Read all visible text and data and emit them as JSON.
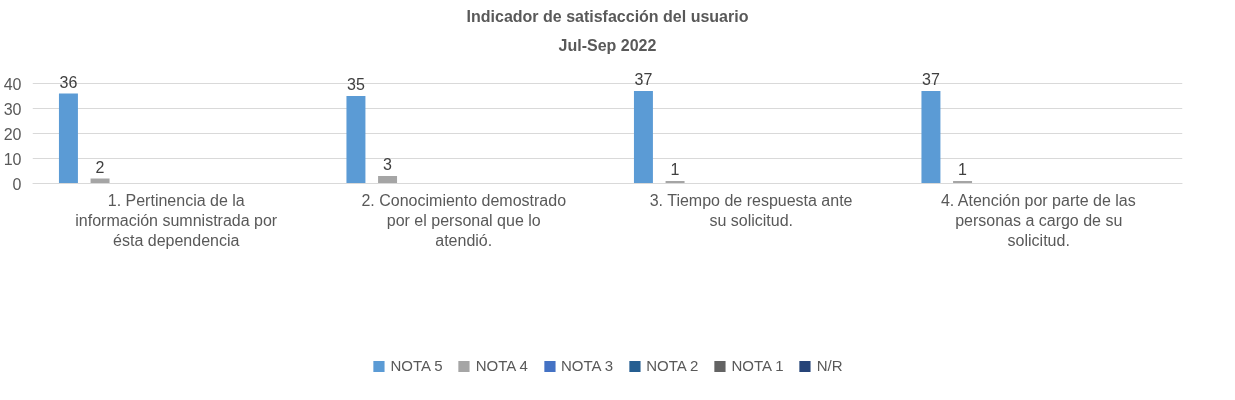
{
  "chart_data": {
    "type": "bar",
    "title": "Indicador de satisfacción del usuario",
    "subtitle": "Jul-Sep 2022",
    "categories": [
      "1. Pertinencia de la información sumnistrada por ésta dependencia",
      "2. Conocimiento demostrado por el personal que lo atendió.",
      "3. Tiempo de respuesta ante su solicitud.",
      "4. Atención por parte de las personas a cargo de su solicitud."
    ],
    "series": [
      {
        "name": "NOTA 5",
        "color": "#5b9bd5",
        "values": [
          36,
          35,
          37,
          37
        ],
        "value_labels": [
          "36",
          "35",
          "37",
          "37"
        ]
      },
      {
        "name": "NOTA 4",
        "color": "#a5a5a5",
        "values": [
          2,
          3,
          1,
          1
        ],
        "value_labels": [
          "2",
          "3",
          "1",
          "1"
        ]
      },
      {
        "name": "NOTA 3",
        "color": "#4472c4",
        "values": [
          0,
          0,
          0,
          0
        ]
      },
      {
        "name": "NOTA 2",
        "color": "#255e91",
        "values": [
          0,
          0,
          0,
          0
        ]
      },
      {
        "name": "NOTA 1",
        "color": "#636363",
        "values": [
          0,
          0,
          0,
          0
        ]
      },
      {
        "name": "N/R",
        "color": "#264478",
        "values": [
          0,
          0,
          0,
          0
        ]
      }
    ],
    "ylim": [
      0,
      40
    ],
    "yticks": [
      0,
      10,
      20,
      30,
      40
    ],
    "grid": "y",
    "legend": "bottom"
  }
}
